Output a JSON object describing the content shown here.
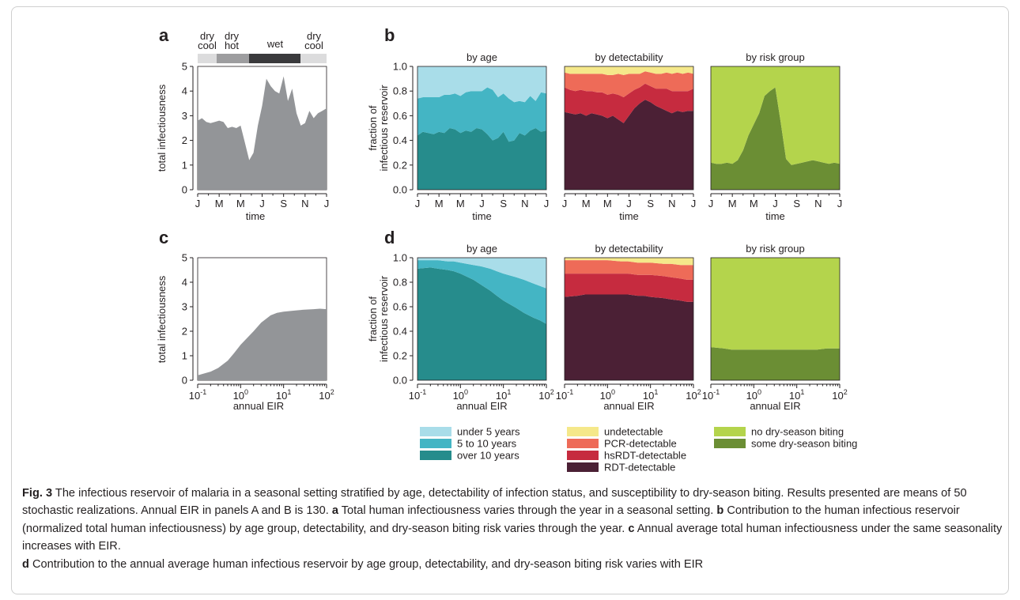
{
  "figure": {
    "panel_letters": [
      "a",
      "b",
      "c",
      "d"
    ],
    "season_bar": {
      "labels": [
        [
          "dry",
          "cool"
        ],
        [
          "dry",
          "hot"
        ],
        [
          "wet"
        ],
        [
          "dry",
          "cool"
        ]
      ],
      "colors": [
        "#dcdcdd",
        "#9d9d9f",
        "#3a3a3c",
        "#dcdcdd"
      ]
    },
    "colors": {
      "gray": "#939598",
      "age": [
        "#a9dde9",
        "#44b5c4",
        "#268c8c"
      ],
      "detect": [
        "#f5e88a",
        "#ee6b58",
        "#c62b3f",
        "#4b2035"
      ],
      "risk": [
        "#b4d44c",
        "#6b8e34"
      ]
    },
    "legend": {
      "age": [
        "under 5 years",
        "5 to 10 years",
        "over 10 years"
      ],
      "detect": [
        "undetectable",
        "PCR-detectable",
        "hsRDT-detectable",
        "RDT-detectable"
      ],
      "risk": [
        "no dry-season biting",
        "some dry-season biting"
      ]
    },
    "eir_ticks": [
      {
        "base": "10",
        "exp": "-1"
      },
      {
        "base": "10",
        "exp": "0"
      },
      {
        "base": "10",
        "exp": "1"
      },
      {
        "base": "10",
        "exp": "2"
      }
    ]
  },
  "chart_data": [
    {
      "panel": "a",
      "type": "area",
      "xlabel": "time",
      "ylabel": "total infectiousness",
      "xticks": [
        "J",
        "M",
        "M",
        "J",
        "S",
        "N",
        "J"
      ],
      "ylim": [
        0,
        5
      ],
      "yticks": [
        0,
        1,
        2,
        3,
        4,
        5
      ],
      "x": [
        0,
        0.2,
        0.4,
        0.6,
        0.8,
        1.0,
        1.2,
        1.4,
        1.6,
        1.8,
        2.0,
        2.2,
        2.4,
        2.6,
        2.8,
        3.0,
        3.2,
        3.4,
        3.6,
        3.8,
        4.0,
        4.2,
        4.4,
        4.6,
        4.8,
        5.0,
        5.2,
        5.4,
        5.6,
        5.8,
        6.0
      ],
      "values": [
        2.8,
        2.9,
        2.75,
        2.7,
        2.75,
        2.8,
        2.75,
        2.5,
        2.55,
        2.5,
        2.6,
        1.9,
        1.2,
        1.5,
        2.6,
        3.4,
        4.5,
        4.2,
        4.0,
        3.9,
        4.6,
        3.6,
        4.1,
        3.1,
        2.6,
        2.7,
        3.2,
        2.9,
        3.1,
        3.2,
        3.3
      ]
    },
    {
      "panel": "b",
      "type": "area",
      "stacked": true,
      "ylabel": "fraction of infectious reservoir",
      "xlabel": "time",
      "xticks": [
        "J",
        "M",
        "M",
        "J",
        "S",
        "N",
        "J"
      ],
      "ylim": [
        0,
        1
      ],
      "yticks": [
        0.0,
        0.2,
        0.4,
        0.6,
        0.8,
        1.0
      ],
      "x": [
        0,
        0.25,
        0.5,
        0.75,
        1.0,
        1.25,
        1.5,
        1.75,
        2.0,
        2.25,
        2.5,
        2.75,
        3.0,
        3.25,
        3.5,
        3.75,
        4.0,
        4.25,
        4.5,
        4.75,
        5.0,
        5.25,
        5.5,
        5.75,
        6.0
      ],
      "subplots": [
        {
          "title": "by age",
          "series": [
            {
              "name": "over 10 years",
              "values": [
                0.44,
                0.47,
                0.46,
                0.45,
                0.47,
                0.46,
                0.5,
                0.49,
                0.46,
                0.48,
                0.47,
                0.5,
                0.49,
                0.45,
                0.4,
                0.42,
                0.47,
                0.39,
                0.4,
                0.46,
                0.44,
                0.48,
                0.5,
                0.47,
                0.48
              ]
            },
            {
              "name": "5 to 10 years",
              "values": [
                0.3,
                0.28,
                0.29,
                0.3,
                0.28,
                0.31,
                0.27,
                0.29,
                0.3,
                0.31,
                0.33,
                0.3,
                0.31,
                0.38,
                0.41,
                0.33,
                0.31,
                0.35,
                0.31,
                0.26,
                0.27,
                0.28,
                0.22,
                0.32,
                0.3
              ]
            },
            {
              "name": "under 5 years",
              "values": [
                0.26,
                0.25,
                0.25,
                0.25,
                0.25,
                0.23,
                0.23,
                0.22,
                0.24,
                0.21,
                0.2,
                0.2,
                0.2,
                0.17,
                0.19,
                0.25,
                0.22,
                0.26,
                0.29,
                0.28,
                0.29,
                0.24,
                0.28,
                0.21,
                0.22
              ]
            }
          ]
        },
        {
          "title": "by detectability",
          "series": [
            {
              "name": "RDT-detectable",
              "values": [
                0.63,
                0.62,
                0.61,
                0.62,
                0.6,
                0.62,
                0.61,
                0.6,
                0.58,
                0.6,
                0.57,
                0.54,
                0.6,
                0.66,
                0.7,
                0.73,
                0.71,
                0.68,
                0.66,
                0.64,
                0.62,
                0.64,
                0.63,
                0.64,
                0.64
              ]
            },
            {
              "name": "hsRDT-detectable",
              "values": [
                0.2,
                0.19,
                0.19,
                0.19,
                0.2,
                0.18,
                0.18,
                0.19,
                0.19,
                0.18,
                0.2,
                0.21,
                0.18,
                0.15,
                0.13,
                0.13,
                0.13,
                0.14,
                0.16,
                0.18,
                0.18,
                0.16,
                0.17,
                0.16,
                0.18
              ]
            },
            {
              "name": "PCR-detectable",
              "values": [
                0.12,
                0.13,
                0.14,
                0.13,
                0.14,
                0.14,
                0.15,
                0.15,
                0.16,
                0.15,
                0.17,
                0.18,
                0.16,
                0.13,
                0.11,
                0.1,
                0.11,
                0.12,
                0.12,
                0.13,
                0.14,
                0.15,
                0.14,
                0.15,
                0.12
              ]
            },
            {
              "name": "undetectable",
              "values": [
                0.05,
                0.06,
                0.06,
                0.06,
                0.06,
                0.06,
                0.06,
                0.06,
                0.07,
                0.07,
                0.06,
                0.07,
                0.06,
                0.06,
                0.06,
                0.04,
                0.05,
                0.06,
                0.06,
                0.05,
                0.06,
                0.05,
                0.06,
                0.05,
                0.06
              ]
            }
          ]
        },
        {
          "title": "by risk group",
          "series": [
            {
              "name": "some dry-season biting",
              "values": [
                0.22,
                0.21,
                0.21,
                0.22,
                0.21,
                0.24,
                0.32,
                0.44,
                0.53,
                0.62,
                0.76,
                0.8,
                0.83,
                0.55,
                0.25,
                0.2,
                0.21,
                0.22,
                0.23,
                0.24,
                0.23,
                0.22,
                0.21,
                0.22,
                0.21
              ]
            },
            {
              "name": "no dry-season biting",
              "values": [
                0.78,
                0.79,
                0.79,
                0.78,
                0.79,
                0.76,
                0.68,
                0.56,
                0.47,
                0.38,
                0.24,
                0.2,
                0.17,
                0.45,
                0.75,
                0.8,
                0.79,
                0.78,
                0.77,
                0.76,
                0.77,
                0.78,
                0.79,
                0.78,
                0.79
              ]
            }
          ]
        }
      ]
    },
    {
      "panel": "c",
      "type": "area",
      "xlabel": "annual EIR",
      "ylabel": "total infectiousness",
      "xscale": "log",
      "xlim": [
        0.1,
        100
      ],
      "ylim": [
        0,
        5
      ],
      "yticks": [
        0,
        1,
        2,
        3,
        4,
        5
      ],
      "x": [
        0.1,
        0.2,
        0.3,
        0.5,
        0.7,
        1,
        2,
        3,
        5,
        7,
        10,
        20,
        30,
        50,
        70,
        100
      ],
      "values": [
        0.2,
        0.35,
        0.5,
        0.8,
        1.1,
        1.45,
        2.0,
        2.35,
        2.65,
        2.75,
        2.8,
        2.85,
        2.88,
        2.9,
        2.92,
        2.9
      ]
    },
    {
      "panel": "d",
      "type": "area",
      "stacked": true,
      "ylabel": "fraction of infectious reservoir",
      "xlabel": "annual EIR",
      "xscale": "log",
      "xlim": [
        0.1,
        100
      ],
      "ylim": [
        0,
        1
      ],
      "yticks": [
        0.0,
        0.2,
        0.4,
        0.6,
        0.8,
        1.0
      ],
      "x": [
        0.1,
        0.2,
        0.3,
        0.5,
        0.7,
        1,
        2,
        3,
        5,
        7,
        10,
        20,
        30,
        50,
        70,
        100
      ],
      "subplots": [
        {
          "title": "by age",
          "series": [
            {
              "name": "over 10 years",
              "values": [
                0.91,
                0.92,
                0.91,
                0.9,
                0.89,
                0.87,
                0.82,
                0.78,
                0.73,
                0.69,
                0.65,
                0.59,
                0.55,
                0.51,
                0.49,
                0.46
              ]
            },
            {
              "name": "5 to 10 years",
              "values": [
                0.07,
                0.06,
                0.07,
                0.07,
                0.08,
                0.09,
                0.12,
                0.15,
                0.18,
                0.2,
                0.22,
                0.25,
                0.27,
                0.28,
                0.28,
                0.29
              ]
            },
            {
              "name": "under 5 years",
              "values": [
                0.02,
                0.02,
                0.02,
                0.03,
                0.03,
                0.04,
                0.06,
                0.07,
                0.09,
                0.11,
                0.13,
                0.16,
                0.18,
                0.21,
                0.23,
                0.25
              ]
            }
          ]
        },
        {
          "title": "by detectability",
          "series": [
            {
              "name": "RDT-detectable",
              "values": [
                0.68,
                0.69,
                0.7,
                0.7,
                0.7,
                0.7,
                0.7,
                0.7,
                0.69,
                0.69,
                0.68,
                0.67,
                0.66,
                0.65,
                0.64,
                0.64
              ]
            },
            {
              "name": "hsRDT-detectable",
              "values": [
                0.19,
                0.18,
                0.17,
                0.17,
                0.17,
                0.17,
                0.17,
                0.17,
                0.17,
                0.17,
                0.18,
                0.18,
                0.18,
                0.18,
                0.18,
                0.18
              ]
            },
            {
              "name": "PCR-detectable",
              "values": [
                0.11,
                0.11,
                0.11,
                0.11,
                0.11,
                0.11,
                0.1,
                0.1,
                0.1,
                0.1,
                0.1,
                0.1,
                0.11,
                0.11,
                0.12,
                0.12
              ]
            },
            {
              "name": "undetectable",
              "values": [
                0.02,
                0.02,
                0.02,
                0.02,
                0.02,
                0.02,
                0.03,
                0.03,
                0.04,
                0.04,
                0.04,
                0.05,
                0.05,
                0.06,
                0.06,
                0.06
              ]
            }
          ]
        },
        {
          "title": "by risk group",
          "series": [
            {
              "name": "some dry-season biting",
              "values": [
                0.27,
                0.26,
                0.25,
                0.25,
                0.25,
                0.25,
                0.25,
                0.25,
                0.25,
                0.25,
                0.25,
                0.25,
                0.25,
                0.26,
                0.26,
                0.26
              ]
            },
            {
              "name": "no dry-season biting",
              "values": [
                0.73,
                0.74,
                0.75,
                0.75,
                0.75,
                0.75,
                0.75,
                0.75,
                0.75,
                0.75,
                0.75,
                0.75,
                0.75,
                0.74,
                0.74,
                0.74
              ]
            }
          ]
        }
      ]
    }
  ],
  "caption": {
    "fig_label": "Fig. 3",
    "title": " The infectious reservoir of malaria in a seasonal setting stratified by age, detectability of infection status, and susceptibility to dry-season biting. Results presented are means of 50 stochastic realizations. Annual EIR in panels A and B is 130. ",
    "a_label": "a",
    "a_text": " Total human infectiousness varies through the year in a seasonal setting. ",
    "b_label": "b",
    "b_text": " Contribution to the human infectious reservoir (normalized total human infectiousness) by age group, detectability, and dry-season biting risk varies through the year. ",
    "c_label": "c",
    "c_text": " Annual average total human infectiousness under the same seasonality increases with EIR.",
    "d_label": "d",
    "d_text": " Contribution to the annual average human infectious reservoir by age group, detectability, and dry-season biting risk varies with EIR"
  }
}
